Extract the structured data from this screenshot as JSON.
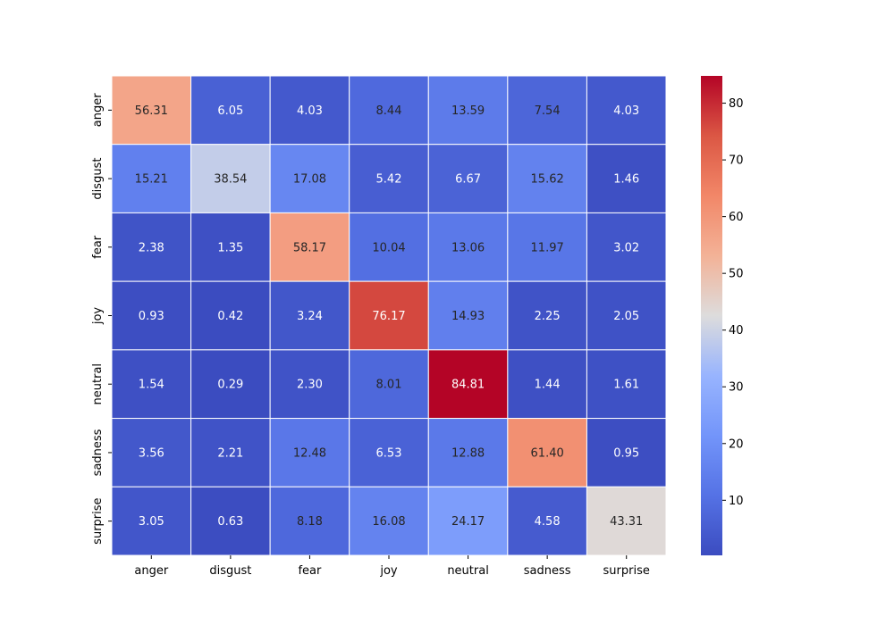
{
  "chart_data": {
    "type": "heatmap",
    "title": "",
    "xlabel": "",
    "ylabel": "",
    "x_categories": [
      "anger",
      "disgust",
      "fear",
      "joy",
      "neutral",
      "sadness",
      "surprise"
    ],
    "y_categories": [
      "anger",
      "disgust",
      "fear",
      "joy",
      "neutral",
      "sadness",
      "surprise"
    ],
    "values": [
      [
        56.31,
        6.05,
        4.03,
        8.44,
        13.59,
        7.54,
        4.03
      ],
      [
        15.21,
        38.54,
        17.08,
        5.42,
        6.67,
        15.62,
        1.46
      ],
      [
        2.38,
        1.35,
        58.17,
        10.04,
        13.06,
        11.97,
        3.02
      ],
      [
        0.93,
        0.42,
        3.24,
        76.17,
        14.93,
        2.25,
        2.05
      ],
      [
        1.54,
        0.29,
        2.3,
        8.01,
        84.81,
        1.44,
        1.61
      ],
      [
        3.56,
        2.21,
        12.48,
        6.53,
        12.88,
        61.4,
        0.95
      ],
      [
        3.05,
        0.63,
        8.18,
        16.08,
        24.17,
        4.58,
        43.31
      ]
    ],
    "value_format": "2 decimals",
    "colormap": "coolwarm",
    "colorbar": {
      "range": [
        0.29,
        84.81
      ],
      "ticks": [
        "10",
        "20",
        "30",
        "40",
        "50",
        "60",
        "70",
        "80"
      ]
    },
    "cell_border_color": "#ffffff",
    "grid": false,
    "legend": "colorbar-right"
  }
}
